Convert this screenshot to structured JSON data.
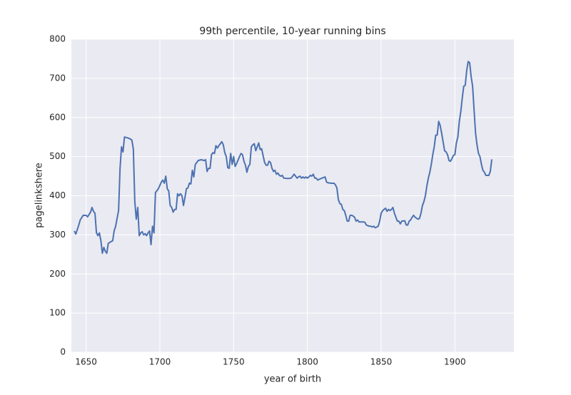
{
  "chart_data": {
    "type": "line",
    "title": "99th percentile, 10-year running bins",
    "xlabel": "year of birth",
    "ylabel": "pagelinkshere",
    "xlim": [
      1640,
      1940
    ],
    "ylim": [
      0,
      800
    ],
    "xticks": [
      1650,
      1700,
      1750,
      1800,
      1850,
      1900
    ],
    "yticks": [
      0,
      100,
      200,
      300,
      400,
      500,
      600,
      700,
      800
    ],
    "grid": true,
    "background": "#eaeaf2",
    "series": [
      {
        "color": "#4c72b0",
        "x": [
          1642,
          1643,
          1645,
          1646,
          1648,
          1650,
          1651,
          1652,
          1653,
          1654,
          1655,
          1656,
          1657,
          1658,
          1659,
          1660,
          1661,
          1662,
          1663,
          1664,
          1665,
          1667,
          1668,
          1669,
          1670,
          1672,
          1673,
          1674,
          1675,
          1676,
          1678,
          1680,
          1681,
          1682,
          1683,
          1684,
          1685,
          1686,
          1687,
          1688,
          1689,
          1690,
          1691,
          1692,
          1693,
          1694,
          1695,
          1696,
          1697,
          1699,
          1701,
          1702,
          1703,
          1704,
          1705,
          1706,
          1707,
          1708,
          1709,
          1710,
          1711,
          1712,
          1713,
          1714,
          1715,
          1716,
          1717,
          1718,
          1719,
          1720,
          1721,
          1722,
          1723,
          1724,
          1725,
          1726,
          1728,
          1730,
          1731,
          1732,
          1733,
          1734,
          1735,
          1736,
          1737,
          1738,
          1739,
          1740,
          1742,
          1743,
          1744,
          1745,
          1746,
          1747,
          1748,
          1749,
          1750,
          1751,
          1752,
          1754,
          1755,
          1756,
          1757,
          1758,
          1759,
          1760,
          1761,
          1762,
          1763,
          1764,
          1765,
          1766,
          1767,
          1768,
          1769,
          1770,
          1771,
          1772,
          1773,
          1774,
          1775,
          1776,
          1777,
          1778,
          1779,
          1780,
          1781,
          1782,
          1783,
          1784,
          1787,
          1789,
          1790,
          1791,
          1792,
          1793,
          1794,
          1795,
          1796,
          1797,
          1798,
          1799,
          1800,
          1801,
          1802,
          1803,
          1804,
          1805,
          1806,
          1807,
          1808,
          1810,
          1812,
          1813,
          1814,
          1816,
          1818,
          1819,
          1820,
          1821,
          1822,
          1823,
          1824,
          1825,
          1826,
          1827,
          1828,
          1829,
          1830,
          1831,
          1832,
          1833,
          1834,
          1835,
          1838,
          1839,
          1840,
          1842,
          1843,
          1844,
          1845,
          1846,
          1847,
          1848,
          1849,
          1850,
          1851,
          1852,
          1853,
          1854,
          1855,
          1856,
          1857,
          1858,
          1859,
          1860,
          1861,
          1862,
          1863,
          1864,
          1866,
          1867,
          1868,
          1869,
          1870,
          1871,
          1872,
          1873,
          1875,
          1876,
          1877,
          1878,
          1879,
          1880,
          1881,
          1882,
          1883,
          1884,
          1885,
          1886,
          1887,
          1888,
          1889,
          1890,
          1891,
          1892,
          1893,
          1894,
          1895,
          1896,
          1897,
          1898,
          1899,
          1900,
          1901,
          1902,
          1903,
          1904,
          1905,
          1906,
          1907,
          1908,
          1909,
          1910,
          1911,
          1912,
          1913,
          1914,
          1915,
          1916,
          1917,
          1918,
          1919,
          1920,
          1921,
          1922,
          1923,
          1924,
          1925
        ],
        "values": [
          310,
          302,
          325,
          338,
          350,
          350,
          346,
          352,
          358,
          370,
          360,
          355,
          305,
          298,
          305,
          285,
          253,
          268,
          258,
          253,
          278,
          283,
          285,
          310,
          322,
          362,
          470,
          525,
          512,
          550,
          548,
          545,
          542,
          520,
          385,
          340,
          370,
          298,
          305,
          308,
          300,
          303,
          298,
          305,
          310,
          275,
          322,
          305,
          408,
          418,
          435,
          440,
          432,
          450,
          418,
          412,
          375,
          370,
          358,
          365,
          365,
          405,
          400,
          405,
          400,
          375,
          395,
          418,
          420,
          432,
          430,
          465,
          448,
          480,
          485,
          490,
          492,
          490,
          492,
          462,
          470,
          470,
          505,
          510,
          508,
          528,
          522,
          528,
          538,
          530,
          510,
          500,
          472,
          470,
          508,
          480,
          500,
          475,
          482,
          500,
          508,
          505,
          488,
          478,
          460,
          475,
          480,
          525,
          530,
          533,
          515,
          525,
          535,
          518,
          520,
          502,
          485,
          478,
          478,
          488,
          485,
          470,
          462,
          465,
          455,
          458,
          452,
          450,
          452,
          445,
          444,
          445,
          450,
          455,
          450,
          445,
          448,
          450,
          445,
          448,
          445,
          448,
          445,
          448,
          452,
          450,
          455,
          445,
          445,
          440,
          442,
          445,
          448,
          435,
          433,
          432,
          432,
          428,
          420,
          390,
          380,
          378,
          365,
          362,
          350,
          335,
          335,
          350,
          350,
          348,
          345,
          335,
          338,
          333,
          333,
          332,
          325,
          322,
          322,
          320,
          322,
          318,
          320,
          322,
          335,
          355,
          362,
          365,
          368,
          360,
          365,
          362,
          365,
          370,
          355,
          345,
          335,
          335,
          328,
          335,
          336,
          325,
          325,
          335,
          338,
          345,
          350,
          345,
          340,
          342,
          355,
          375,
          385,
          400,
          425,
          445,
          460,
          480,
          505,
          525,
          555,
          555,
          590,
          580,
          560,
          538,
          515,
          512,
          505,
          490,
          488,
          495,
          503,
          505,
          535,
          550,
          590,
          615,
          650,
          680,
          682,
          720,
          743,
          740,
          705,
          680,
          620,
          560,
          530,
          508,
          500,
          480,
          465,
          460,
          452,
          452,
          452,
          462,
          493
        ]
      }
    ]
  }
}
